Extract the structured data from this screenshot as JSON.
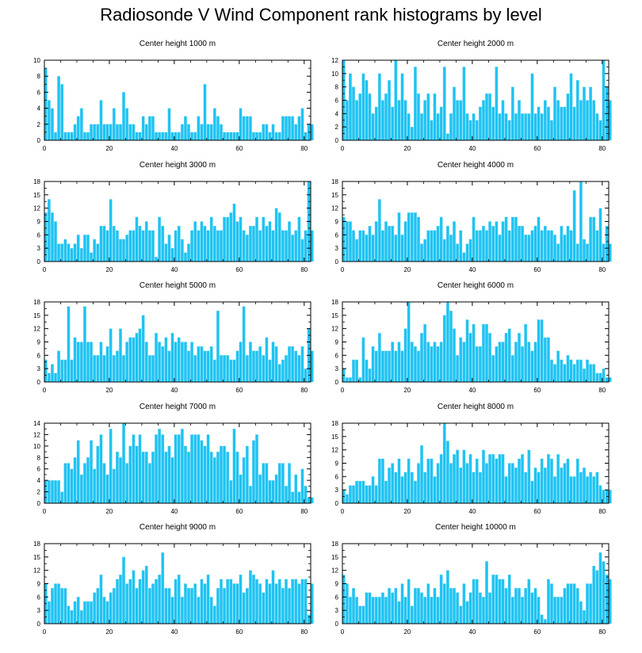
{
  "title": "Radiosonde V Wind Component rank histograms by level",
  "colors": {
    "bar": "#1ec3f2",
    "bar_edge": "#8fdff7",
    "axis": "#000000"
  },
  "chart_data": [
    {
      "type": "bar",
      "title": "Center height 1000 m",
      "xlim": [
        0,
        82
      ],
      "ylim": [
        0,
        10
      ],
      "yticks": [
        0,
        2,
        4,
        6,
        8,
        10
      ],
      "xticks": [
        0,
        20,
        40,
        60,
        80
      ],
      "values": [
        9,
        5,
        4,
        1,
        8,
        7,
        1,
        1,
        1,
        2,
        3,
        4,
        1,
        1,
        2,
        2,
        2,
        5,
        2,
        2,
        2,
        4,
        2,
        2,
        6,
        4,
        2,
        2,
        1,
        1,
        3,
        2,
        3,
        3,
        1,
        1,
        1,
        1,
        4,
        1,
        1,
        1,
        2,
        3,
        2,
        1,
        1,
        3,
        2,
        7,
        2,
        2,
        4,
        3,
        2,
        1,
        1,
        1,
        1,
        1,
        4,
        3,
        3,
        3,
        1,
        1,
        1,
        2,
        2,
        1,
        2,
        1,
        1,
        3,
        3,
        3,
        3,
        2,
        3,
        4,
        1,
        2,
        2
      ]
    },
    {
      "type": "bar",
      "title": "Center height 2000 m",
      "xlim": [
        0,
        82
      ],
      "ylim": [
        0,
        12
      ],
      "yticks": [
        0,
        2,
        4,
        6,
        8,
        10,
        12
      ],
      "xticks": [
        0,
        20,
        40,
        60,
        80
      ],
      "values": [
        12,
        6,
        10,
        8,
        6,
        7,
        10,
        9,
        7,
        4,
        5,
        10,
        6,
        7,
        9,
        5,
        12,
        6,
        10,
        6,
        4,
        2,
        11,
        7,
        4,
        6,
        7,
        3,
        7,
        4,
        5,
        11,
        1,
        4,
        8,
        6,
        6,
        11,
        4,
        3,
        4,
        3,
        5,
        6,
        7,
        7,
        5,
        11,
        4,
        6,
        4,
        3,
        8,
        4,
        6,
        4,
        4,
        4,
        10,
        4,
        5,
        4,
        6,
        5,
        3,
        8,
        6,
        5,
        5,
        7,
        10,
        5,
        9,
        6,
        8,
        6,
        8,
        6,
        4,
        3,
        12,
        8,
        6
      ]
    },
    {
      "type": "bar",
      "title": "Center height 3000 m",
      "xlim": [
        0,
        82
      ],
      "ylim": [
        0,
        18
      ],
      "yticks": [
        0,
        3,
        6,
        9,
        12,
        15,
        18
      ],
      "xticks": [
        0,
        20,
        40,
        60,
        80
      ],
      "values": [
        11,
        14,
        11,
        9,
        4,
        4,
        5,
        4,
        3,
        4,
        6,
        3,
        6,
        6,
        2,
        5,
        4,
        8,
        8,
        7,
        14,
        8,
        7,
        5,
        5,
        6,
        7,
        7,
        10,
        8,
        7,
        9,
        7,
        7,
        1,
        10,
        8,
        4,
        6,
        3,
        7,
        8,
        5,
        2,
        4,
        7,
        9,
        7,
        9,
        8,
        7,
        10,
        8,
        7,
        7,
        10,
        10,
        11,
        13,
        9,
        10,
        7,
        6,
        8,
        8,
        10,
        7,
        10,
        8,
        9,
        7,
        12,
        11,
        7,
        7,
        9,
        6,
        7,
        10,
        5,
        7,
        18,
        7
      ]
    },
    {
      "type": "bar",
      "title": "Center height 4000 m",
      "xlim": [
        0,
        82
      ],
      "ylim": [
        0,
        18
      ],
      "yticks": [
        0,
        3,
        6,
        9,
        12,
        15,
        18
      ],
      "xticks": [
        0,
        20,
        40,
        60,
        80
      ],
      "values": [
        10,
        9,
        9,
        7,
        5,
        7,
        7,
        6,
        8,
        6,
        9,
        14,
        7,
        9,
        8,
        8,
        6,
        11,
        6,
        9,
        11,
        11,
        11,
        10,
        4,
        5,
        7,
        7,
        7,
        8,
        10,
        5,
        8,
        6,
        9,
        4,
        7,
        2,
        4,
        5,
        10,
        7,
        7,
        8,
        7,
        9,
        8,
        9,
        6,
        9,
        10,
        7,
        10,
        10,
        8,
        8,
        6,
        6,
        7,
        8,
        10,
        7,
        8,
        7,
        7,
        6,
        4,
        8,
        6,
        8,
        7,
        16,
        4,
        18,
        5,
        4,
        10,
        10,
        7,
        12,
        4,
        8,
        4
      ]
    },
    {
      "type": "bar",
      "title": "Center height 5000 m",
      "xlim": [
        0,
        82
      ],
      "ylim": [
        0,
        18
      ],
      "yticks": [
        0,
        3,
        6,
        9,
        12,
        15,
        18
      ],
      "xticks": [
        0,
        20,
        40,
        60,
        80
      ],
      "values": [
        5,
        2,
        4,
        2,
        7,
        5,
        5,
        17,
        5,
        10,
        9,
        9,
        17,
        9,
        9,
        6,
        6,
        9,
        6,
        8,
        12,
        6,
        7,
        12,
        6,
        9,
        10,
        10,
        11,
        12,
        15,
        9,
        6,
        6,
        11,
        9,
        8,
        10,
        7,
        11,
        9,
        10,
        9,
        9,
        7,
        9,
        6,
        8,
        8,
        7,
        7,
        8,
        5,
        16,
        6,
        6,
        6,
        5,
        5,
        7,
        9,
        17,
        6,
        9,
        7,
        7,
        8,
        6,
        10,
        5,
        9,
        8,
        4,
        5,
        6,
        8,
        8,
        7,
        6,
        8,
        3,
        12,
        7
      ]
    },
    {
      "type": "bar",
      "title": "Center height 6000 m",
      "xlim": [
        0,
        82
      ],
      "ylim": [
        0,
        18
      ],
      "yticks": [
        0,
        3,
        6,
        9,
        12,
        15,
        18
      ],
      "xticks": [
        0,
        20,
        40,
        60,
        80
      ],
      "values": [
        3,
        1,
        1,
        5,
        5,
        1,
        10,
        5,
        3,
        8,
        7,
        11,
        7,
        7,
        7,
        9,
        7,
        9,
        7,
        12,
        18,
        9,
        8,
        7,
        11,
        13,
        9,
        8,
        9,
        8,
        9,
        15,
        18,
        16,
        12,
        6,
        10,
        9,
        14,
        11,
        13,
        8,
        8,
        13,
        13,
        11,
        6,
        8,
        9,
        9,
        11,
        12,
        6,
        9,
        11,
        8,
        13,
        9,
        7,
        9,
        14,
        14,
        10,
        10,
        5,
        4,
        7,
        5,
        4,
        6,
        5,
        4,
        5,
        5,
        3,
        5,
        4,
        4,
        2,
        2,
        3,
        1,
        1
      ]
    },
    {
      "type": "bar",
      "title": "Center height 7000 m",
      "xlim": [
        0,
        82
      ],
      "ylim": [
        0,
        14
      ],
      "yticks": [
        0,
        2,
        4,
        6,
        8,
        10,
        12,
        14
      ],
      "xticks": [
        0,
        20,
        40,
        60,
        80
      ],
      "values": [
        4,
        4,
        4,
        4,
        4,
        2,
        7,
        7,
        6,
        8,
        11,
        5,
        7,
        8,
        11,
        6,
        10,
        12,
        7,
        5,
        13,
        6,
        9,
        8,
        14,
        7,
        10,
        12,
        10,
        12,
        9,
        9,
        7,
        9,
        12,
        13,
        12,
        9,
        10,
        8,
        12,
        12,
        13,
        10,
        9,
        12,
        12,
        12,
        11,
        10,
        12,
        9,
        8,
        9,
        10,
        10,
        9,
        4,
        13,
        9,
        5,
        8,
        10,
        3,
        11,
        12,
        5,
        7,
        7,
        4,
        4,
        5,
        7,
        7,
        3,
        7,
        2,
        5,
        2,
        6,
        3,
        1,
        1
      ]
    },
    {
      "type": "bar",
      "title": "Center height 8000 m",
      "xlim": [
        0,
        82
      ],
      "ylim": [
        0,
        18
      ],
      "yticks": [
        0,
        3,
        6,
        9,
        12,
        15,
        18
      ],
      "xticks": [
        0,
        20,
        40,
        60,
        80
      ],
      "values": [
        3,
        2,
        4,
        4,
        5,
        5,
        5,
        4,
        4,
        6,
        4,
        10,
        10,
        5,
        8,
        9,
        7,
        10,
        6,
        7,
        10,
        7,
        5,
        9,
        13,
        7,
        10,
        10,
        6,
        9,
        11,
        18,
        14,
        9,
        11,
        12,
        8,
        12,
        9,
        11,
        7,
        10,
        7,
        12,
        9,
        11,
        11,
        10,
        11,
        11,
        6,
        9,
        9,
        8,
        10,
        11,
        7,
        12,
        5,
        8,
        7,
        10,
        8,
        11,
        10,
        6,
        11,
        8,
        9,
        10,
        6,
        6,
        10,
        7,
        8,
        6,
        7,
        6,
        7,
        4,
        3,
        3,
        3
      ]
    },
    {
      "type": "bar",
      "title": "Center height 9000 m",
      "xlim": [
        0,
        82
      ],
      "ylim": [
        0,
        18
      ],
      "yticks": [
        0,
        3,
        6,
        9,
        12,
        15,
        18
      ],
      "xticks": [
        0,
        20,
        40,
        60,
        80
      ],
      "values": [
        9,
        5,
        8,
        9,
        9,
        8,
        8,
        4,
        3,
        5,
        6,
        3,
        5,
        5,
        5,
        7,
        8,
        11,
        6,
        5,
        7,
        8,
        10,
        11,
        15,
        9,
        10,
        12,
        8,
        10,
        12,
        13,
        8,
        9,
        10,
        11,
        16,
        8,
        8,
        6,
        10,
        11,
        6,
        9,
        8,
        8,
        9,
        6,
        10,
        9,
        11,
        6,
        4,
        8,
        10,
        8,
        10,
        10,
        9,
        9,
        11,
        7,
        8,
        12,
        11,
        10,
        9,
        7,
        10,
        9,
        12,
        9,
        10,
        8,
        10,
        8,
        10,
        10,
        9,
        10,
        10,
        2,
        9
      ]
    },
    {
      "type": "bar",
      "title": "Center height 10000 m",
      "xlim": [
        0,
        82
      ],
      "ylim": [
        0,
        18
      ],
      "yticks": [
        0,
        3,
        6,
        9,
        12,
        15,
        18
      ],
      "xticks": [
        0,
        20,
        40,
        60,
        80
      ],
      "values": [
        11,
        9,
        6,
        8,
        6,
        4,
        4,
        7,
        7,
        6,
        6,
        6,
        7,
        6,
        8,
        7,
        8,
        5,
        9,
        6,
        10,
        4,
        8,
        8,
        7,
        6,
        9,
        6,
        8,
        6,
        11,
        9,
        12,
        8,
        8,
        7,
        4,
        9,
        5,
        7,
        10,
        10,
        7,
        6,
        14,
        7,
        11,
        11,
        10,
        10,
        8,
        11,
        6,
        8,
        8,
        6,
        8,
        10,
        7,
        8,
        6,
        2,
        1,
        10,
        9,
        6,
        6,
        6,
        8,
        9,
        9,
        9,
        8,
        5,
        3,
        9,
        9,
        13,
        12,
        16,
        14,
        11,
        10
      ]
    }
  ]
}
